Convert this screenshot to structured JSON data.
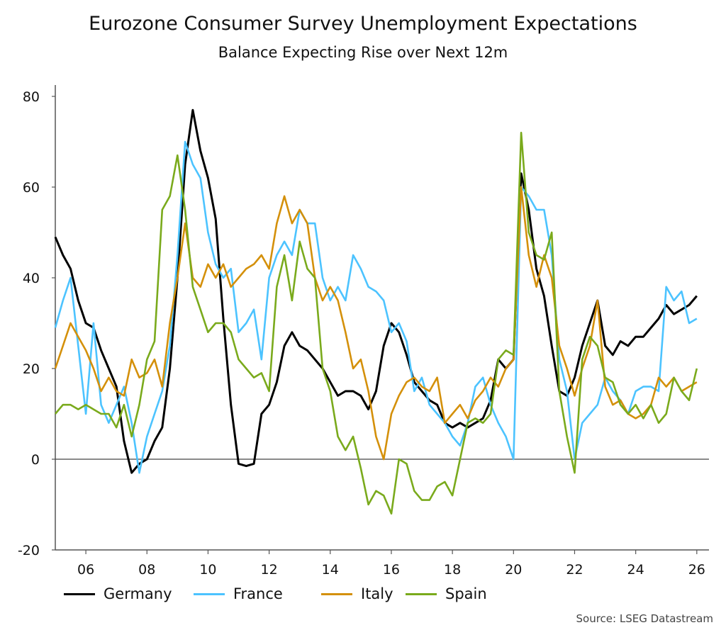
{
  "chart_data": {
    "type": "line",
    "title": "Eurozone Consumer Survey Unemployment Expectations",
    "subtitle": "Balance Expecting Rise over Next 12m",
    "xlabel": "",
    "ylabel": "",
    "ylim": [
      -20,
      80
    ],
    "yticks": [
      "-20",
      "0",
      "20",
      "40",
      "60",
      "80"
    ],
    "ytick_values": [
      -20,
      0,
      20,
      40,
      60,
      80
    ],
    "xticks": [
      "06",
      "08",
      "10",
      "12",
      "14",
      "16",
      "18",
      "20",
      "22",
      "24",
      "26"
    ],
    "xtick_dates": [
      "2006-01",
      "2008-01",
      "2010-01",
      "2012-01",
      "2014-01",
      "2016-01",
      "2018-01",
      "2020-01",
      "2022-01",
      "2024-01",
      "2026-01"
    ],
    "xlim": [
      "2005-01",
      "2026-03"
    ],
    "grid": false,
    "zero_line": true,
    "legend_position": "bottom",
    "x": [
      "2005-01",
      "2005-04",
      "2005-07",
      "2005-10",
      "2006-01",
      "2006-04",
      "2006-07",
      "2006-10",
      "2007-01",
      "2007-04",
      "2007-07",
      "2007-10",
      "2008-01",
      "2008-04",
      "2008-07",
      "2008-10",
      "2009-01",
      "2009-04",
      "2009-07",
      "2009-10",
      "2010-01",
      "2010-04",
      "2010-07",
      "2010-10",
      "2011-01",
      "2011-04",
      "2011-07",
      "2011-10",
      "2012-01",
      "2012-04",
      "2012-07",
      "2012-10",
      "2013-01",
      "2013-04",
      "2013-07",
      "2013-10",
      "2014-01",
      "2014-04",
      "2014-07",
      "2014-10",
      "2015-01",
      "2015-04",
      "2015-07",
      "2015-10",
      "2016-01",
      "2016-04",
      "2016-07",
      "2016-10",
      "2017-01",
      "2017-04",
      "2017-07",
      "2017-10",
      "2018-01",
      "2018-04",
      "2018-07",
      "2018-10",
      "2019-01",
      "2019-04",
      "2019-07",
      "2019-10",
      "2020-01",
      "2020-04",
      "2020-07",
      "2020-10",
      "2021-01",
      "2021-04",
      "2021-07",
      "2021-10",
      "2022-01",
      "2022-04",
      "2022-07",
      "2022-10",
      "2023-01",
      "2023-04",
      "2023-07",
      "2023-10",
      "2024-01",
      "2024-04",
      "2024-07",
      "2024-10",
      "2025-01",
      "2025-04",
      "2025-07",
      "2025-10",
      "2026-01"
    ],
    "series": [
      {
        "name": "Germany",
        "color": "#000000",
        "values": [
          49,
          45,
          42,
          35,
          30,
          29,
          24,
          20,
          16,
          4,
          -3,
          -1,
          0,
          4,
          7,
          20,
          40,
          65,
          77,
          68,
          62,
          53,
          31,
          12,
          -1,
          -1.5,
          -1,
          10,
          12,
          17,
          25,
          28,
          25,
          24,
          22,
          20,
          17,
          14,
          15,
          15,
          14,
          11,
          15,
          25,
          30,
          28,
          23,
          17,
          15,
          13,
          12,
          8,
          7,
          8,
          7,
          8,
          9,
          13,
          22,
          20,
          22,
          63,
          55,
          42,
          36,
          25,
          15,
          14,
          18,
          25,
          30,
          35,
          25,
          23,
          26,
          25,
          27,
          27,
          29,
          31,
          34,
          32,
          33,
          34,
          36
        ]
      },
      {
        "name": "France",
        "color": "#4cc3ff",
        "values": [
          29,
          35,
          40,
          25,
          10,
          30,
          12,
          8,
          12,
          16,
          8,
          -3,
          5,
          10,
          15,
          25,
          45,
          70,
          65,
          62,
          50,
          43,
          40,
          42,
          28,
          30,
          33,
          22,
          40,
          45,
          48,
          45,
          55,
          52,
          52,
          40,
          35,
          38,
          35,
          45,
          42,
          38,
          37,
          35,
          28,
          30,
          26,
          15,
          18,
          12,
          10,
          8,
          5,
          3,
          8,
          16,
          18,
          12,
          8,
          5,
          0,
          60,
          58,
          55,
          55,
          45,
          22,
          15,
          0,
          8,
          10,
          12,
          18,
          15,
          13,
          10,
          15,
          16,
          16,
          15,
          38,
          35,
          37,
          30,
          31
        ]
      },
      {
        "name": "Italy",
        "color": "#d4900a",
        "values": [
          20,
          25,
          30,
          27,
          24,
          20,
          15,
          18,
          15,
          14,
          22,
          18,
          19,
          22,
          16,
          30,
          40,
          52,
          40,
          38,
          43,
          40,
          43,
          38,
          40,
          42,
          43,
          45,
          42,
          52,
          58,
          52,
          55,
          52,
          40,
          35,
          38,
          35,
          28,
          20,
          22,
          15,
          5,
          0,
          10,
          14,
          17,
          18,
          16,
          15,
          18,
          8,
          10,
          12,
          9,
          13,
          15,
          18,
          16,
          20,
          22,
          60,
          45,
          38,
          45,
          40,
          25,
          20,
          14,
          20,
          25,
          35,
          16,
          12,
          13,
          10,
          9,
          10,
          12,
          18,
          16,
          18,
          15,
          16,
          17
        ]
      },
      {
        "name": "Spain",
        "color": "#7aaa1c",
        "values": [
          10,
          12,
          12,
          11,
          12,
          11,
          10,
          10,
          7,
          12,
          5,
          12,
          22,
          26,
          55,
          58,
          67,
          55,
          38,
          33,
          28,
          30,
          30,
          28,
          22,
          20,
          18,
          19,
          15,
          38,
          45,
          35,
          48,
          42,
          40,
          20,
          15,
          5,
          2,
          5,
          -2,
          -10,
          -7,
          -8,
          -12,
          0,
          -1,
          -7,
          -9,
          -9,
          -6,
          -5,
          -8,
          0,
          8,
          9,
          8,
          10,
          22,
          24,
          23,
          72,
          50,
          45,
          44,
          50,
          15,
          5,
          -3,
          22,
          27,
          25,
          18,
          17,
          12,
          10,
          12,
          9,
          12,
          8,
          10,
          18,
          15,
          13,
          20
        ]
      }
    ],
    "source": "Source: LSEG Datastream"
  }
}
